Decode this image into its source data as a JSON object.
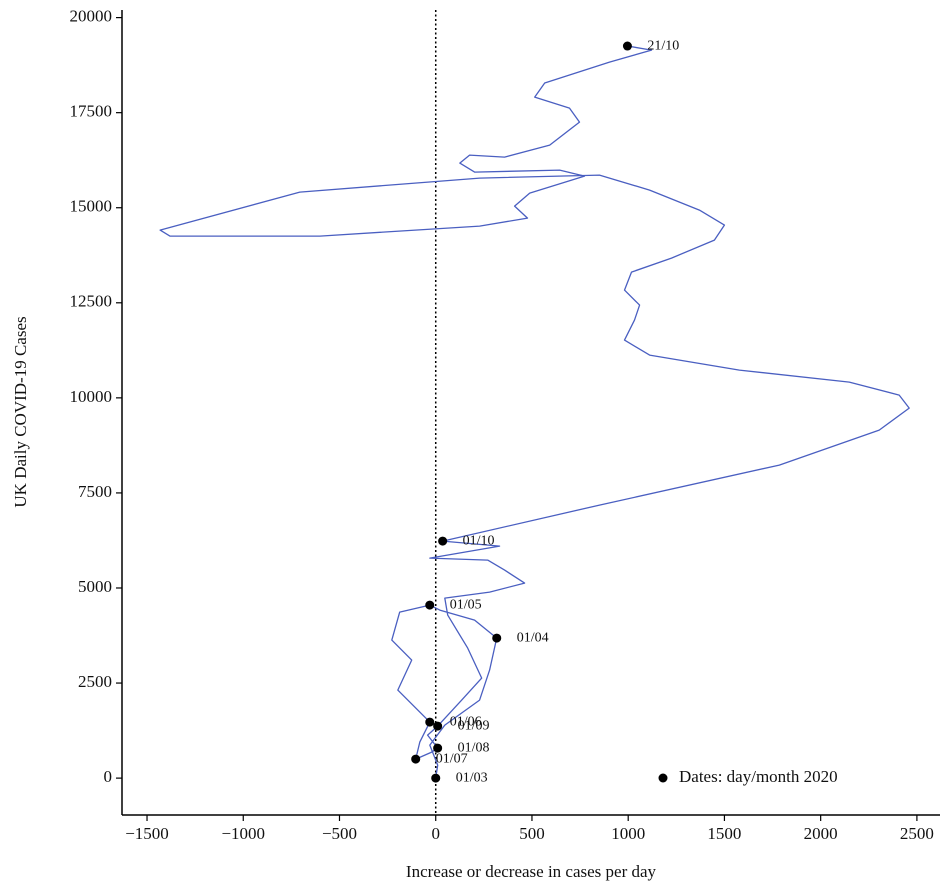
{
  "chart_data": {
    "type": "line",
    "xlabel": "Increase or decrease in cases per day",
    "ylabel": "UK Daily COVID-19 Cases",
    "xlim": [
      -1630,
      2620
    ],
    "ylim": [
      -970,
      20200
    ],
    "xticks": [
      {
        "value": -1500,
        "label": "−1500"
      },
      {
        "value": -1000,
        "label": "−1000"
      },
      {
        "value": -500,
        "label": "−500"
      },
      0,
      500,
      1000,
      1500,
      2000,
      2500
    ],
    "yticks": [
      0,
      2500,
      5000,
      7500,
      10000,
      12500,
      15000,
      17500,
      20000
    ],
    "vline": 0,
    "legend": "lower right",
    "series": [
      {
        "type": "line",
        "color": "#4a5fc1",
        "x": [
          0,
          10,
          -31,
          47,
          228,
          280,
          317,
          202,
          21,
          -31,
          -187,
          -228,
          -125,
          -197,
          -83,
          -31,
          -83,
          -104,
          -21,
          10,
          -42,
          10,
          135,
          239,
          166,
          62,
          47,
          280,
          462,
          358,
          270,
          -31,
          332,
          36,
          851,
          1785,
          2304,
          2460,
          2408,
          2149,
          1578,
          1111,
          981,
          1033,
          1059,
          981,
          1017,
          1225,
          1448,
          1500,
          1370,
          1111,
          851,
          228,
          -706,
          -1432,
          -1381,
          -602,
          228,
          477,
          410,
          488,
          773,
          644,
          202,
          125,
          176,
          358,
          592,
          747,
          695,
          514,
          566,
          903,
          1121,
          996
        ],
        "values": [
          0,
          342,
          868,
          1394,
          2051,
          2840,
          3682,
          4155,
          4418,
          4550,
          4366,
          3629,
          3103,
          2314,
          1736,
          1473,
          947,
          500,
          684,
          789,
          1131,
          1368,
          2051,
          2630,
          3419,
          4287,
          4734,
          4892,
          5129,
          5470,
          5733,
          5786,
          6102,
          6233,
          7180,
          8232,
          9152,
          9731,
          10073,
          10415,
          10730,
          11125,
          11519,
          12045,
          12440,
          12834,
          13308,
          13676,
          14149,
          14544,
          14938,
          15464,
          15859,
          15780,
          15412,
          14412,
          14255,
          14255,
          14518,
          14728,
          15044,
          15386,
          15833,
          15990,
          15938,
          16175,
          16385,
          16332,
          16648,
          17253,
          17621,
          17910,
          18279,
          18831,
          19146,
          19252
        ]
      },
      {
        "type": "scatter",
        "name": "Dates: day/month 2020",
        "color": "#000000",
        "x": [
          0,
          317,
          -31,
          -31,
          -104,
          10,
          10,
          36,
          996
        ],
        "values": [
          0,
          3682,
          4550,
          1473,
          500,
          789,
          1368,
          6233,
          19252
        ],
        "labels": [
          "01/03",
          "01/04",
          "01/05",
          "01/06",
          "01/07",
          "01/08",
          "01/09",
          "01/10",
          "21/10"
        ]
      }
    ]
  }
}
